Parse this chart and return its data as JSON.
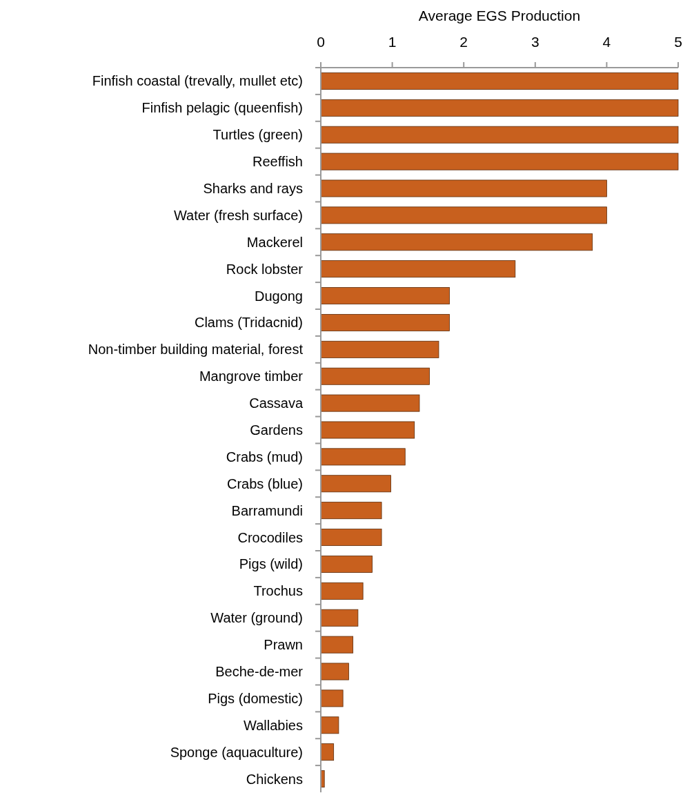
{
  "chart_data": {
    "type": "bar",
    "orientation": "horizontal",
    "xlabel": "Average EGS Production",
    "categories": [
      "Finfish coastal (trevally, mullet etc)",
      "Finfish pelagic (queenfish)",
      "Turtles (green)",
      "Reeffish",
      "Sharks and rays",
      "Water (fresh surface)",
      "Mackerel",
      "Rock lobster",
      "Dugong",
      "Clams (Tridacnid)",
      "Non-timber building material, forest",
      "Mangrove timber",
      "Cassava",
      "Gardens",
      "Crabs (mud)",
      "Crabs (blue)",
      "Barramundi",
      "Crocodiles",
      "Pigs (wild)",
      "Trochus",
      "Water (ground)",
      "Prawn",
      "Beche-de-mer",
      "Pigs (domestic)",
      "Wallabies",
      "Sponge (aquaculture)",
      "Chickens"
    ],
    "values": [
      5,
      5,
      5,
      5,
      4,
      4,
      3.8,
      2.72,
      1.8,
      1.8,
      1.65,
      1.52,
      1.38,
      1.31,
      1.18,
      0.98,
      0.85,
      0.85,
      0.72,
      0.59,
      0.52,
      0.45,
      0.39,
      0.31,
      0.25,
      0.18,
      0.05
    ],
    "color": "#c8601e",
    "xlim": [
      0,
      5
    ],
    "xticks": [
      0,
      1,
      2,
      3,
      4,
      5
    ]
  }
}
